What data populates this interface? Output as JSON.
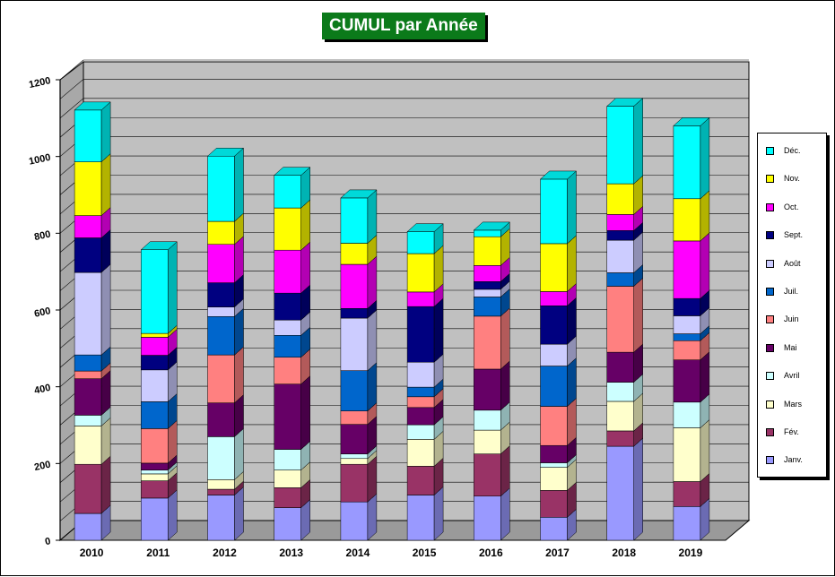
{
  "chart_data": {
    "type": "bar",
    "stacked": true,
    "three_d": true,
    "title": "CUMUL par Année",
    "xlabel": "",
    "ylabel": "",
    "ylim": [
      0,
      1200
    ],
    "yticks": [
      0,
      200,
      400,
      600,
      800,
      1000,
      1200
    ],
    "grid": true,
    "legend_position": "right",
    "categories": [
      "2010",
      "2011",
      "2012",
      "2013",
      "2014",
      "2015",
      "2016",
      "2017",
      "2018",
      "2019"
    ],
    "series": [
      {
        "name": "Janv.",
        "color": "#9999ff",
        "values": [
          70,
          110,
          118,
          85,
          100,
          118,
          115,
          60,
          245,
          88
        ]
      },
      {
        "name": "Fév.",
        "color": "#993366",
        "values": [
          128,
          45,
          15,
          52,
          98,
          75,
          110,
          70,
          40,
          65
        ]
      },
      {
        "name": "Mars",
        "color": "#ffffcc",
        "values": [
          100,
          18,
          25,
          46,
          15,
          70,
          62,
          60,
          77,
          140
        ]
      },
      {
        "name": "Avril",
        "color": "#ccffff",
        "values": [
          28,
          10,
          112,
          54,
          12,
          38,
          52,
          12,
          50,
          67
        ]
      },
      {
        "name": "Mai",
        "color": "#660066",
        "values": [
          95,
          18,
          88,
          170,
          77,
          45,
          107,
          45,
          78,
          110
        ]
      },
      {
        "name": "Juin",
        "color": "#ff8080",
        "values": [
          20,
          90,
          125,
          70,
          35,
          28,
          138,
          102,
          172,
          50
        ]
      },
      {
        "name": "Juil.",
        "color": "#0066cc",
        "values": [
          42,
          70,
          100,
          57,
          105,
          25,
          50,
          105,
          35,
          18
        ]
      },
      {
        "name": "Août",
        "color": "#ccccff",
        "values": [
          215,
          83,
          25,
          40,
          137,
          65,
          20,
          57,
          85,
          47
        ]
      },
      {
        "name": "Sept.",
        "color": "#000080",
        "values": [
          90,
          38,
          63,
          70,
          25,
          145,
          20,
          100,
          25,
          45
        ]
      },
      {
        "name": "Oct.",
        "color": "#ff00ff",
        "values": [
          58,
          47,
          100,
          112,
          115,
          38,
          42,
          37,
          42,
          150
        ]
      },
      {
        "name": "Nov.",
        "color": "#ffff00",
        "values": [
          140,
          10,
          60,
          110,
          55,
          100,
          75,
          125,
          80,
          110
        ]
      },
      {
        "name": "Déc.",
        "color": "#00ffff",
        "values": [
          135,
          218,
          170,
          85,
          118,
          57,
          17,
          168,
          202,
          190
        ]
      }
    ]
  }
}
